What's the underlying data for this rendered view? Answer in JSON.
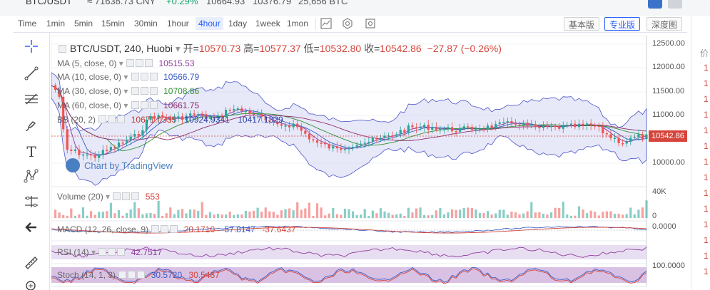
{
  "ticker": {
    "pair": "BTC/USDT",
    "cny": "≈ 71638.73 CNY",
    "change": "+0.29%",
    "high": "10664.93",
    "low": "10376.79",
    "volume": "25,656 BTC"
  },
  "toolbar": {
    "timeframes": [
      "Time",
      "1min",
      "5min",
      "15min",
      "30min",
      "1hour",
      "4hour",
      "1day",
      "1week",
      "1mon"
    ],
    "active_timeframe": "4hour",
    "views": [
      "基本版",
      "专业版",
      "深度图"
    ],
    "active_view": "专业版",
    "icons": [
      "indicator-icon",
      "settings-icon",
      "screenshot-icon"
    ]
  },
  "left_tools": [
    "crosshair-icon",
    "trend-line-icon",
    "fib-tool-icon",
    "brush-icon",
    "text-tool-icon",
    "pattern-tool-icon",
    "measure-icon",
    "back-arrow-icon",
    "ruler-icon",
    "zoom-in-icon"
  ],
  "header": {
    "symbol": "BTC/USDT, 240, Huobi",
    "open_label": "开=",
    "open": "10570.73",
    "high_label": "高=",
    "high": "10577.37",
    "low_label": "低=",
    "low": "10532.80",
    "close_label": "收=",
    "close": "10542.86",
    "change": "−27.87 (−0.26%)"
  },
  "indicators": [
    {
      "name": "MA (5, close, 0)",
      "value": "10515.53",
      "color": "#8e3d9c"
    },
    {
      "name": "MA (10, close, 0)",
      "value": "10566.79",
      "color": "#3b5cc6"
    },
    {
      "name": "MA (30, close, 0)",
      "value": "10708.86",
      "color": "#2e8f2e"
    },
    {
      "name": "MA (60, close, 0)",
      "value": "10661.75",
      "color": "#8e2a6a"
    }
  ],
  "bb": {
    "name": "BB (20, 2)",
    "mid": "10671.0335",
    "upper": "10924.9341",
    "lower": "10417.1329"
  },
  "watermark": "Chart by TradingView",
  "volume": {
    "name": "Volume (20)",
    "value": "553",
    "axis_top": "40K",
    "axis_zero": "0"
  },
  "macd": {
    "name": "MACD (12, 26, close, 9)",
    "v1": "20.1710",
    "v2": "-57.8147",
    "v3": "-37.6437",
    "axis": "0.0000"
  },
  "rsi": {
    "name": "RSI (14)",
    "value": "42.7517"
  },
  "stoch": {
    "name": "Stoch (14, 1, 3)",
    "k": "30.5720",
    "d": "30.5437",
    "axis": "100.0000"
  },
  "price_axis": [
    "12500.00",
    "12000.00",
    "11500.00",
    "11000.00",
    "10000.00"
  ],
  "last_price": "10542.86",
  "colors": {
    "up": "#26a69a",
    "down": "#ef5350",
    "accent": "#2962ff",
    "bb_fill": "#c9cdf0"
  },
  "right_panel_head": "价",
  "right_panel_item": "1"
}
